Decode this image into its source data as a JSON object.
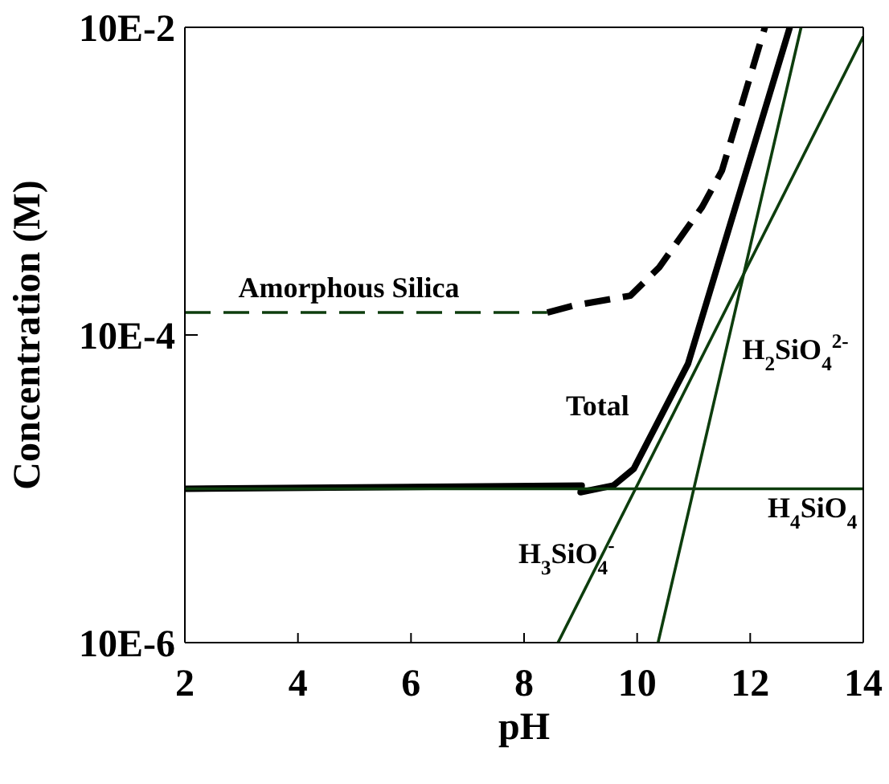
{
  "chart_data": {
    "type": "line",
    "xlabel": "pH",
    "ylabel": "Concentration (M)",
    "log": "y",
    "xlim": [
      2,
      14
    ],
    "xticks": [
      2,
      4,
      6,
      8,
      10,
      12,
      14
    ],
    "ylim": [
      1e-05,
      0.1
    ],
    "yticks": [
      {
        "value": 1e-05,
        "label": "10E-6"
      },
      {
        "value": 0.001,
        "label": "10E-4"
      },
      {
        "value": 0.1,
        "label": "10E-2"
      }
    ],
    "grid": false,
    "legend": false,
    "marker": "none",
    "series": [
      {
        "name": "Total",
        "color": "#000000",
        "line_style": "solid",
        "x": [
          2,
          9.02,
          9.0,
          9.58,
          9.94,
          10.9,
          12.7
        ],
        "values": [
          0.0001,
          0.000105,
          9.5e-05,
          0.000105,
          0.000135,
          0.00065,
          0.1
        ]
      },
      {
        "name": "Amorphous Silica",
        "color": "#0d3d0d",
        "line_style": "dashed",
        "x": [
          2,
          8.41
        ],
        "values": [
          0.0014,
          0.0014
        ]
      },
      {
        "color": "#000000",
        "line_style": "dashed",
        "x": [
          8.41,
          8.87,
          9.88,
          10.39,
          11.15,
          11.5,
          12.26
        ],
        "values": [
          0.0014,
          0.00155,
          0.0018,
          0.00275,
          0.0068,
          0.0117,
          0.1
        ]
      },
      {
        "name": "H$_{4}$SiO$_{4}$",
        "color": "#0d3d0d",
        "line_style": "solid",
        "x": [
          2,
          14
        ],
        "values": [
          0.0001,
          0.0001
        ]
      },
      {
        "name": "H$_{3}$SiO$_{4}$$^{-}$",
        "color": "#0d3d0d",
        "line_style": "solid",
        "x": [
          8.6,
          14
        ],
        "values": [
          1e-05,
          0.087
        ]
      },
      {
        "name": "H$_{2}$SiO$_{4}$$^{2-}$",
        "color": "#0d3d0d",
        "line_style": "solid",
        "x": [
          10.37,
          12.9
        ],
        "values": [
          1e-05,
          0.1
        ]
      }
    ]
  }
}
